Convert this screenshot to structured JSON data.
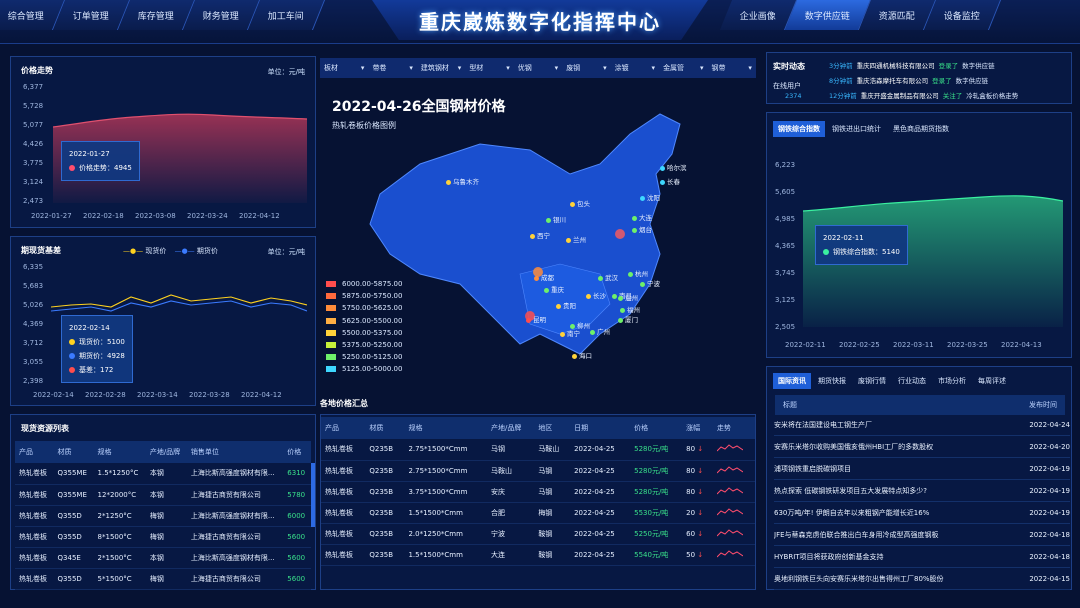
{
  "header": {
    "title": "重庆崴炼数字化指挥中心",
    "left_nav": [
      "综合管理",
      "订单管理",
      "库存管理",
      "财务管理",
      "加工车间"
    ],
    "right_nav": [
      "企业画像",
      "数字供应链",
      "资源匹配",
      "设备监控"
    ],
    "right_active": "数字供应链"
  },
  "price_trend": {
    "title": "价格走势",
    "unit": "单位：元/吨",
    "yticks": [
      "6,377",
      "5,728",
      "5,077",
      "4,426",
      "3,775",
      "3,124",
      "2,473"
    ],
    "xticks": [
      "2022-01-27",
      "2022-02-18",
      "2022-03-08",
      "2022-03-24",
      "2022-04-12"
    ],
    "tooltip": {
      "date": "2022-01-27",
      "label": "价格走势：",
      "value": "4945"
    },
    "color": "#c83a5a"
  },
  "basis": {
    "title": "期现货基差",
    "legend_spot": "现货价",
    "legend_futures": "期货价",
    "unit": "单位：元/吨",
    "yticks": [
      "6,335",
      "5,683",
      "5,026",
      "4,369",
      "3,712",
      "3,055",
      "2,398"
    ],
    "xticks": [
      "2022-02-14",
      "2022-02-28",
      "2022-03-14",
      "2022-03-28",
      "2022-04-12"
    ],
    "tooltip": {
      "date": "2022-02-14",
      "spot_label": "现货价：",
      "spot_value": "5100",
      "futures_label": "期货价：",
      "futures_value": "4928",
      "basis_label": "基差：",
      "basis_value": "172"
    },
    "spot_color": "#ffd21f",
    "futures_color": "#3b7bff"
  },
  "spot_table": {
    "title": "现货资源列表",
    "headers": [
      "产品",
      "材质",
      "规格",
      "产地/品牌",
      "销售单位",
      "价格"
    ],
    "rows": [
      [
        "热轧卷板",
        "Q355ME",
        "1.5*1250°C",
        "本钢",
        "上海比斯高强度钢材有限...",
        "6310"
      ],
      [
        "热轧卷板",
        "Q355ME",
        "12*2000°C",
        "本钢",
        "上海捷古商贸有限公司",
        "5780"
      ],
      [
        "热轧卷板",
        "Q355D",
        "2*1250°C",
        "梅钢",
        "上海比斯高强度钢材有限...",
        "6000"
      ],
      [
        "热轧卷板",
        "Q355D",
        "8*1500°C",
        "梅钢",
        "上海捷古商贸有限公司",
        "5600"
      ],
      [
        "热轧卷板",
        "Q345E",
        "2*1500°C",
        "本钢",
        "上海比斯高强度钢材有限...",
        "5600"
      ],
      [
        "热轧卷板",
        "Q355D",
        "5*1500°C",
        "梅钢",
        "上海捷古商贸有限公司",
        "5600"
      ]
    ]
  },
  "categories": [
    "板材",
    "带卷",
    "建筑钢材",
    "型材",
    "优钢",
    "废钢",
    "涂镀",
    "金属管",
    "钢带"
  ],
  "map": {
    "title": "2022-04-26全国钢材价格",
    "subtitle": "热轧卷板价格图例",
    "legend": [
      {
        "label": "6000.00-5875.00",
        "color": "#ff4d4d"
      },
      {
        "label": "5875.00-5750.00",
        "color": "#ff6a3d"
      },
      {
        "label": "5750.00-5625.00",
        "color": "#ff8c3a"
      },
      {
        "label": "5625.00-5500.00",
        "color": "#ffae42"
      },
      {
        "label": "5500.00-5375.00",
        "color": "#ffd23a"
      },
      {
        "label": "5375.00-5250.00",
        "color": "#c6f03a"
      },
      {
        "label": "5250.00-5125.00",
        "color": "#6ef06a"
      },
      {
        "label": "5125.00-5000.00",
        "color": "#3ed7ff"
      }
    ],
    "cities": [
      {
        "name": "乌鲁木齐"
      },
      {
        "name": "哈尔滨"
      },
      {
        "name": "长春"
      },
      {
        "name": "沈阳"
      },
      {
        "name": "包头"
      },
      {
        "name": "大连"
      },
      {
        "name": "银川"
      },
      {
        "name": "西宁"
      },
      {
        "name": "兰州"
      },
      {
        "name": "烟台"
      },
      {
        "name": "成都"
      },
      {
        "name": "重庆"
      },
      {
        "name": "武汉"
      },
      {
        "name": "长沙"
      },
      {
        "name": "南昌"
      },
      {
        "name": "杭州"
      },
      {
        "name": "宁波"
      },
      {
        "name": "温州"
      },
      {
        "name": "贵阳"
      },
      {
        "name": "昆明"
      },
      {
        "name": "柳州"
      },
      {
        "name": "南宁"
      },
      {
        "name": "广州"
      },
      {
        "name": "福州"
      },
      {
        "name": "厦门"
      },
      {
        "name": "海口"
      }
    ]
  },
  "regional": {
    "title": "各地价格汇总",
    "headers": [
      "产品",
      "材质",
      "规格",
      "产地/品牌",
      "地区",
      "日期",
      "价格",
      "涨幅",
      "走势"
    ],
    "rows": [
      [
        "热轧卷板",
        "Q235B",
        "2.75*1500*Cmm",
        "马钢",
        "马鞍山",
        "2022-04-25",
        "5280元/吨",
        "80"
      ],
      [
        "热轧卷板",
        "Q235B",
        "2.75*1500*Cmm",
        "马鞍山",
        "马钢",
        "2022-04-25",
        "5280元/吨",
        "80"
      ],
      [
        "热轧卷板",
        "Q235B",
        "3.75*1500*Cmm",
        "安庆",
        "马钢",
        "2022-04-25",
        "5280元/吨",
        "80"
      ],
      [
        "热轧卷板",
        "Q235B",
        "1.5*1500*Cmm",
        "合肥",
        "梅钢",
        "2022-04-25",
        "5530元/吨",
        "20"
      ],
      [
        "热轧卷板",
        "Q235B",
        "2.0*1250*Cmm",
        "宁波",
        "鞍钢",
        "2022-04-25",
        "5250元/吨",
        "60"
      ],
      [
        "热轧卷板",
        "Q235B",
        "1.5*1500*Cmm",
        "大连",
        "鞍钢",
        "2022-04-25",
        "5540元/吨",
        "50"
      ]
    ]
  },
  "realtime": {
    "title": "实时动态",
    "online_label": "在线用户",
    "online_value": "2374",
    "items": [
      {
        "time": "3分钟前",
        "company": "重庆四通机械科技有限公司",
        "action": "登录了",
        "target": "数字供应链"
      },
      {
        "time": "8分钟前",
        "company": "重庆浩森摩托车有限公司",
        "action": "登录了",
        "target": "数字供应链"
      },
      {
        "time": "12分钟前",
        "company": "重庆开盛金属制品有限公司",
        "action": "关注了",
        "target": "冷轧盒板价格走势"
      }
    ]
  },
  "index": {
    "tabs": [
      "钢铁综合指数",
      "钢铁进出口统计",
      "黑色商品期货指数"
    ],
    "yticks": [
      "6,223",
      "5,605",
      "4,985",
      "4,365",
      "3,745",
      "3,125",
      "2,505"
    ],
    "xticks": [
      "2022-02-11",
      "2022-02-25",
      "2022-03-11",
      "2022-03-25",
      "2022-04-13"
    ],
    "tooltip": {
      "date": "2022-02-11",
      "label": "钢铁综合指数：",
      "value": "5140"
    },
    "color": "#2fd08a"
  },
  "news": {
    "tabs": [
      "国际资讯",
      "期货快报",
      "废钢行情",
      "行业动态",
      "市场分析",
      "每周评述"
    ],
    "col_title": "标题",
    "col_date": "发布时间",
    "items": [
      {
        "title": "安米将在法国建设电工钢生产厂",
        "date": "2022-04-24"
      },
      {
        "title": "安赛乐米塔尔收购美国俄亥俄州HBI工厂的多数股权",
        "date": "2022-04-20"
      },
      {
        "title": "浦项钢铁重启脱碳钢项目",
        "date": "2022-04-19"
      },
      {
        "title": "热点探索 低碳钢铁研发项目五大发展特点知多少?",
        "date": "2022-04-19"
      },
      {
        "title": "630万吨/年! 伊朗自去年以来粗钢产能增长近16%",
        "date": "2022-04-19"
      },
      {
        "title": "JFE与蒂森克虏伯联合推出白车身用冷成型高强度钢板",
        "date": "2022-04-18"
      },
      {
        "title": "HYBRIT项目将获政府创新基金支持",
        "date": "2022-04-18"
      },
      {
        "title": "奥地利钢铁巨头向安赛乐米塔尔出售得州工厂80%股份",
        "date": "2022-04-15"
      }
    ]
  }
}
